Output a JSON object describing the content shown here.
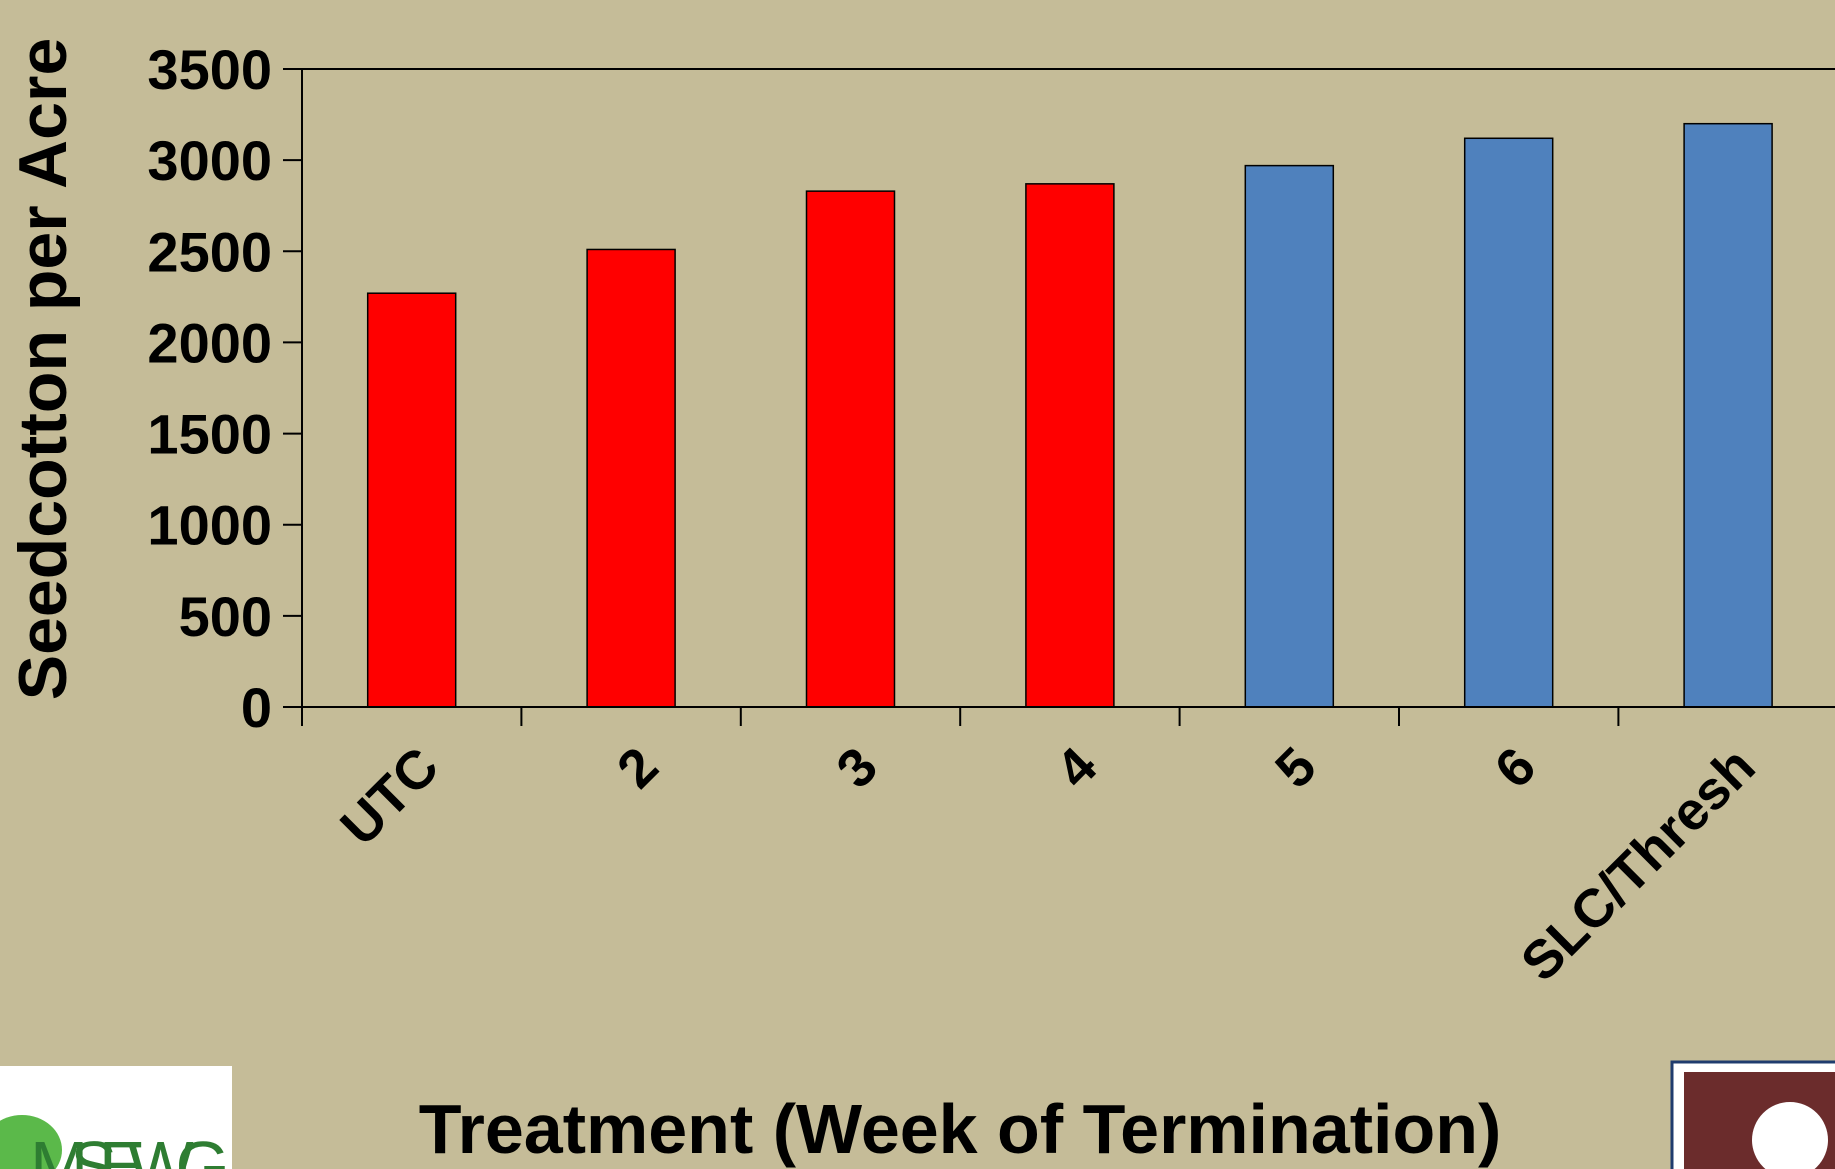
{
  "chart_data": {
    "type": "bar",
    "y_label": "Seedcotton per Acre",
    "x_label": "Treatment (Week of Termination)",
    "categories": [
      "UTC",
      "2",
      "3",
      "4",
      "5",
      "6",
      "SLC/Thresh"
    ],
    "values": [
      2270,
      2510,
      2830,
      2870,
      2970,
      3120,
      3200
    ],
    "colors": [
      "#ff0000",
      "#ff0000",
      "#ff0000",
      "#ff0000",
      "#4f81bd",
      "#4f81bd",
      "#4f81bd"
    ],
    "ylim": [
      0,
      3500
    ],
    "yticks": [
      0,
      500,
      1000,
      1500,
      2000,
      2500,
      3000,
      3500
    ],
    "logo_text": "MSEWG"
  }
}
